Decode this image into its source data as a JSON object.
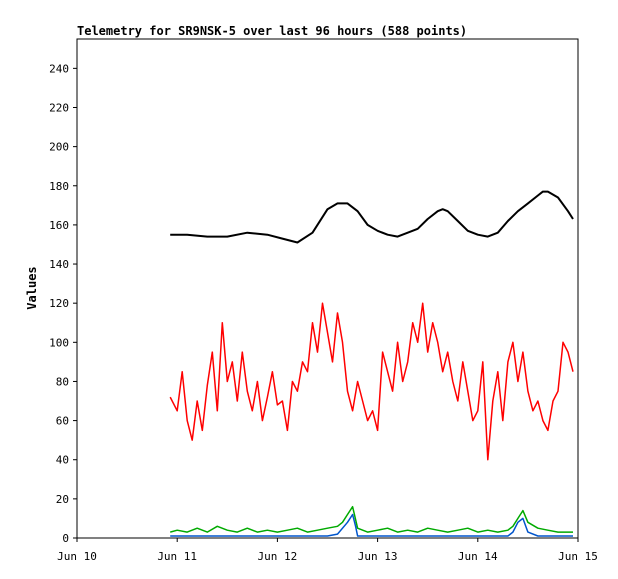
{
  "chart_data": {
    "type": "line",
    "title": "Telemetry for SR9NSK-5 over last 96 hours (588 points)",
    "ylabel": "Values",
    "xlabel": "",
    "ylim": [
      0,
      255
    ],
    "yticks": [
      0,
      20,
      40,
      60,
      80,
      100,
      120,
      140,
      160,
      180,
      200,
      220,
      240
    ],
    "xlim_days": [
      10,
      15
    ],
    "xticks": [
      {
        "day": 10,
        "label": "Jun 10"
      },
      {
        "day": 11,
        "label": "Jun 11"
      },
      {
        "day": 12,
        "label": "Jun 12"
      },
      {
        "day": 13,
        "label": "Jun 13"
      },
      {
        "day": 14,
        "label": "Jun 14"
      },
      {
        "day": 15,
        "label": "Jun 15"
      }
    ],
    "grid": false,
    "legend": "none",
    "series": [
      {
        "color": "#000000",
        "x_days": [
          10.93,
          11.1,
          11.3,
          11.5,
          11.7,
          11.9,
          12.05,
          12.2,
          12.35,
          12.5,
          12.6,
          12.7,
          12.8,
          12.9,
          13.0,
          13.1,
          13.2,
          13.3,
          13.4,
          13.5,
          13.6,
          13.65,
          13.7,
          13.8,
          13.9,
          14.0,
          14.1,
          14.2,
          14.3,
          14.4,
          14.5,
          14.6,
          14.65,
          14.7,
          14.8,
          14.9,
          14.95
        ],
        "values": [
          155,
          155,
          154,
          154,
          156,
          155,
          153,
          151,
          156,
          168,
          171,
          171,
          167,
          160,
          157,
          155,
          154,
          156,
          158,
          163,
          167,
          168,
          167,
          162,
          157,
          155,
          154,
          156,
          162,
          167,
          171,
          175,
          177,
          177,
          174,
          167,
          163
        ]
      },
      {
        "color": "#ff0000",
        "x_days": [
          10.93,
          11.0,
          11.05,
          11.1,
          11.15,
          11.2,
          11.25,
          11.3,
          11.35,
          11.4,
          11.45,
          11.5,
          11.55,
          11.6,
          11.65,
          11.7,
          11.75,
          11.8,
          11.85,
          11.9,
          11.95,
          12.0,
          12.05,
          12.1,
          12.15,
          12.2,
          12.25,
          12.3,
          12.35,
          12.4,
          12.45,
          12.5,
          12.55,
          12.6,
          12.65,
          12.7,
          12.75,
          12.8,
          12.85,
          12.9,
          12.95,
          13.0,
          13.05,
          13.1,
          13.15,
          13.2,
          13.25,
          13.3,
          13.35,
          13.4,
          13.45,
          13.5,
          13.55,
          13.6,
          13.65,
          13.7,
          13.75,
          13.8,
          13.85,
          13.9,
          13.95,
          14.0,
          14.05,
          14.1,
          14.15,
          14.2,
          14.25,
          14.3,
          14.35,
          14.4,
          14.45,
          14.5,
          14.55,
          14.6,
          14.65,
          14.7,
          14.75,
          14.8,
          14.85,
          14.9,
          14.95
        ],
        "values": [
          72,
          65,
          85,
          60,
          50,
          70,
          55,
          78,
          95,
          65,
          110,
          80,
          90,
          70,
          95,
          75,
          65,
          80,
          60,
          72,
          85,
          68,
          70,
          55,
          80,
          75,
          90,
          85,
          110,
          95,
          120,
          105,
          90,
          115,
          100,
          75,
          65,
          80,
          70,
          60,
          65,
          55,
          95,
          85,
          75,
          100,
          80,
          90,
          110,
          100,
          120,
          95,
          110,
          100,
          85,
          95,
          80,
          70,
          90,
          75,
          60,
          65,
          90,
          40,
          70,
          85,
          60,
          90,
          100,
          80,
          95,
          75,
          65,
          70,
          60,
          55,
          70,
          75,
          100,
          95,
          85
        ]
      },
      {
        "color": "#00aa00",
        "x_days": [
          10.93,
          11.0,
          11.1,
          11.2,
          11.3,
          11.4,
          11.5,
          11.6,
          11.7,
          11.8,
          11.9,
          12.0,
          12.1,
          12.2,
          12.3,
          12.4,
          12.5,
          12.6,
          12.65,
          12.7,
          12.75,
          12.8,
          12.9,
          13.0,
          13.1,
          13.2,
          13.3,
          13.4,
          13.5,
          13.6,
          13.7,
          13.8,
          13.9,
          14.0,
          14.1,
          14.2,
          14.3,
          14.35,
          14.4,
          14.45,
          14.5,
          14.6,
          14.7,
          14.8,
          14.9,
          14.95
        ],
        "values": [
          3,
          4,
          3,
          5,
          3,
          6,
          4,
          3,
          5,
          3,
          4,
          3,
          4,
          5,
          3,
          4,
          5,
          6,
          8,
          12,
          16,
          5,
          3,
          4,
          5,
          3,
          4,
          3,
          5,
          4,
          3,
          4,
          5,
          3,
          4,
          3,
          4,
          6,
          10,
          14,
          8,
          5,
          4,
          3,
          3,
          3
        ]
      },
      {
        "color": "#0055cc",
        "x_days": [
          10.93,
          11.5,
          11.8,
          12.2,
          12.5,
          12.6,
          12.7,
          12.75,
          12.78,
          12.8,
          13.0,
          13.5,
          14.0,
          14.3,
          14.35,
          14.4,
          14.45,
          14.5,
          14.6,
          14.7,
          14.95
        ],
        "values": [
          1,
          1,
          1,
          1,
          1,
          2,
          8,
          12,
          6,
          1,
          1,
          1,
          1,
          1,
          3,
          8,
          10,
          3,
          1,
          1,
          1
        ]
      }
    ]
  }
}
